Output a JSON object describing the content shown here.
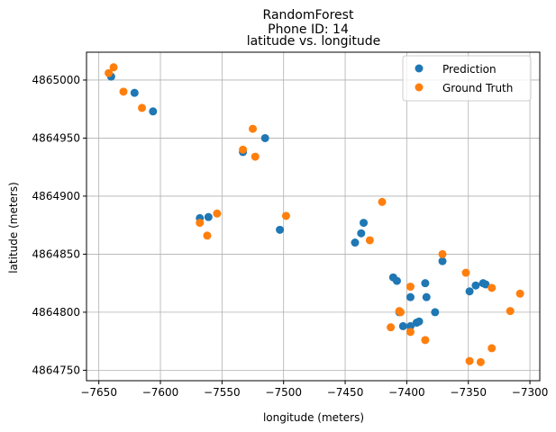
{
  "chart_data": {
    "type": "scatter",
    "title_lines": [
      "RandomForest",
      "Phone ID: 14",
      "latitude vs. longitude"
    ],
    "xlabel": "longitude (meters)",
    "ylabel": "latitude (meters)",
    "xlim": [
      -7660,
      -7292
    ],
    "ylim": [
      4864741,
      4865024
    ],
    "xticks": [
      -7650,
      -7600,
      -7550,
      -7500,
      -7450,
      -7400,
      -7350,
      -7300
    ],
    "xtick_labels": [
      "−7650",
      "−7600",
      "−7550",
      "−7500",
      "−7450",
      "−7400",
      "−7350",
      "−7300"
    ],
    "yticks": [
      4864750,
      4864800,
      4864850,
      4864900,
      4864950,
      4865000
    ],
    "ytick_labels": [
      "4864750",
      "4864800",
      "4864850",
      "4864900",
      "4864950",
      "4865000"
    ],
    "grid": true,
    "legend_position": "top-right",
    "series": [
      {
        "name": "Prediction",
        "color": "#1f77b4",
        "points": [
          [
            -7640,
            4865003
          ],
          [
            -7621,
            4864989
          ],
          [
            -7606,
            4864973
          ],
          [
            -7533,
            4864938
          ],
          [
            -7515,
            4864950
          ],
          [
            -7568,
            4864881
          ],
          [
            -7561,
            4864882
          ],
          [
            -7503,
            4864871
          ],
          [
            -7435,
            4864877
          ],
          [
            -7437,
            4864868
          ],
          [
            -7442,
            4864860
          ],
          [
            -7411,
            4864830
          ],
          [
            -7408,
            4864827
          ],
          [
            -7371,
            4864844
          ],
          [
            -7385,
            4864825
          ],
          [
            -7384,
            4864813
          ],
          [
            -7397,
            4864813
          ],
          [
            -7349,
            4864818
          ],
          [
            -7344,
            4864823
          ],
          [
            -7338,
            4864825
          ],
          [
            -7336,
            4864824
          ],
          [
            -7406,
            4864800
          ],
          [
            -7377,
            4864800
          ],
          [
            -7392,
            4864791
          ],
          [
            -7390,
            4864792
          ],
          [
            -7403,
            4864788
          ],
          [
            -7397,
            4864788
          ]
        ]
      },
      {
        "name": "Ground Truth",
        "color": "#ff7f0e",
        "points": [
          [
            -7642,
            4865006
          ],
          [
            -7638,
            4865011
          ],
          [
            -7630,
            4864990
          ],
          [
            -7615,
            4864976
          ],
          [
            -7525,
            4864958
          ],
          [
            -7533,
            4864940
          ],
          [
            -7523,
            4864934
          ],
          [
            -7554,
            4864885
          ],
          [
            -7568,
            4864877
          ],
          [
            -7562,
            4864866
          ],
          [
            -7498,
            4864883
          ],
          [
            -7420,
            4864895
          ],
          [
            -7430,
            4864862
          ],
          [
            -7371,
            4864850
          ],
          [
            -7352,
            4864834
          ],
          [
            -7331,
            4864821
          ],
          [
            -7308,
            4864816
          ],
          [
            -7397,
            4864822
          ],
          [
            -7406,
            4864801
          ],
          [
            -7405,
            4864800
          ],
          [
            -7316,
            4864801
          ],
          [
            -7413,
            4864787
          ],
          [
            -7397,
            4864783
          ],
          [
            -7385,
            4864776
          ],
          [
            -7331,
            4864769
          ],
          [
            -7349,
            4864758
          ],
          [
            -7340,
            4864757
          ]
        ]
      }
    ]
  }
}
